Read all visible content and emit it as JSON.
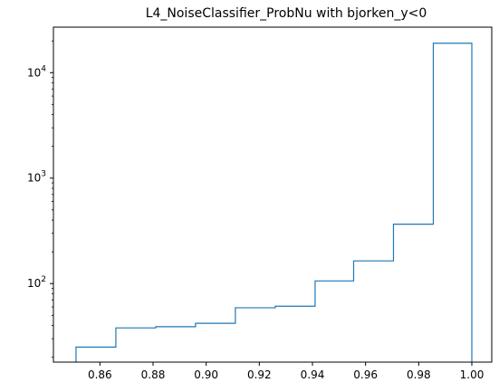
{
  "chart_data": {
    "type": "histogram",
    "title": "L4_NoiseClassifier_ProbNu with bjorken_y<0",
    "xlabel": "",
    "ylabel": "",
    "x_scale": "linear",
    "y_scale": "log",
    "xlim": [
      0.8425,
      1.0075
    ],
    "ylim": [
      18,
      27000
    ],
    "grid": false,
    "legend": "none",
    "histtype": "step",
    "line_color": "#1f77b4",
    "bin_edges": [
      0.851,
      0.866,
      0.881,
      0.896,
      0.911,
      0.926,
      0.941,
      0.9555,
      0.9705,
      0.9855,
      1.0
    ],
    "counts": [
      25,
      38,
      39,
      42,
      59,
      61,
      106,
      164,
      366,
      19000
    ],
    "x_ticks": [
      0.86,
      0.88,
      0.9,
      0.92,
      0.94,
      0.96,
      0.98,
      1.0
    ],
    "x_tick_labels": [
      "0.86",
      "0.88",
      "0.90",
      "0.92",
      "0.94",
      "0.96",
      "0.98",
      "1.00"
    ],
    "y_major_ticks": [
      100,
      1000,
      10000
    ],
    "y_tick_labels": [
      {
        "base": "10",
        "exp": "2"
      },
      {
        "base": "10",
        "exp": "3"
      },
      {
        "base": "10",
        "exp": "4"
      }
    ]
  }
}
